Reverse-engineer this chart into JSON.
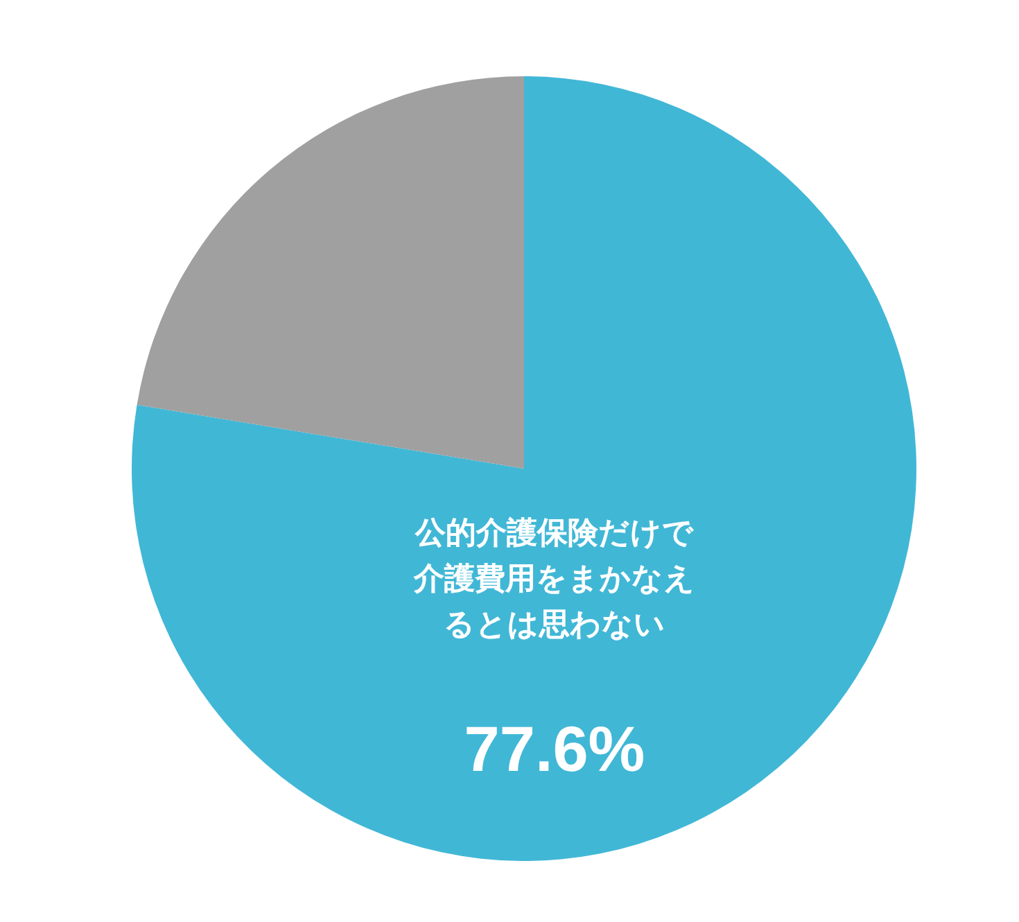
{
  "chart_data": {
    "type": "pie",
    "categories": [
      "公的介護保険だけで介護費用をまかなえるとは思わない",
      null
    ],
    "values": [
      77.6,
      22.4
    ],
    "colors": [
      "#41b7d6",
      "#a0a0a0"
    ],
    "value_labels": [
      "77.6%",
      null
    ]
  }
}
